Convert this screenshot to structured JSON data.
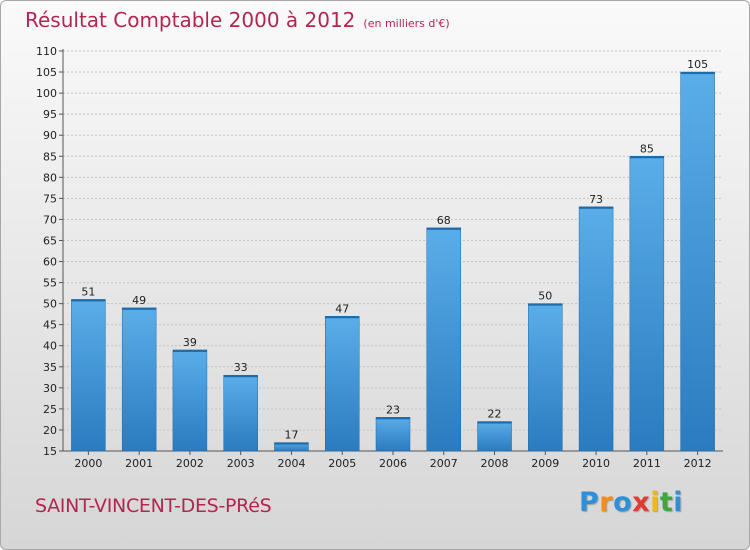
{
  "chart_data": {
    "type": "bar",
    "title": "Résultat Comptable 2000 à 2012",
    "subtitle": "(en milliers d'€)",
    "categories": [
      "2000",
      "2001",
      "2002",
      "2003",
      "2004",
      "2005",
      "2006",
      "2007",
      "2008",
      "2009",
      "2010",
      "2011",
      "2012"
    ],
    "values": [
      51,
      49,
      39,
      33,
      17,
      47,
      23,
      68,
      22,
      50,
      73,
      85,
      105
    ],
    "ylim": [
      15,
      110
    ],
    "ytick_step": 5,
    "grid": true,
    "bar_color": "#3d8fd6"
  },
  "footer": {
    "commune": "SAINT-VINCENT-DES-PRéS",
    "logo_letters": [
      {
        "ch": "P",
        "color": "#2f8fd8"
      },
      {
        "ch": "r",
        "color": "#f28c1b"
      },
      {
        "ch": "o",
        "color": "#2f8fd8"
      },
      {
        "ch": "x",
        "color": "#e23a2e"
      },
      {
        "ch": "i",
        "color": "#f2b81b"
      },
      {
        "ch": "t",
        "color": "#3aa83a"
      },
      {
        "ch": "i",
        "color": "#2f8fd8"
      }
    ]
  }
}
